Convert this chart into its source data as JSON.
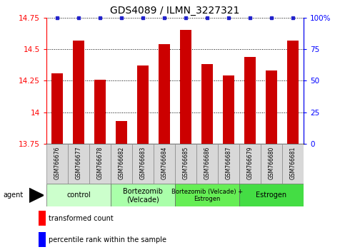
{
  "title": "GDS4089 / ILMN_3227321",
  "samples": [
    "GSM766676",
    "GSM766677",
    "GSM766678",
    "GSM766682",
    "GSM766683",
    "GSM766684",
    "GSM766685",
    "GSM766686",
    "GSM766687",
    "GSM766679",
    "GSM766680",
    "GSM766681"
  ],
  "values": [
    14.31,
    14.57,
    14.26,
    13.93,
    14.37,
    14.54,
    14.65,
    14.38,
    14.29,
    14.44,
    14.33,
    14.57
  ],
  "bar_color": "#cc0000",
  "dot_color": "#2222cc",
  "ylim": [
    13.75,
    14.75
  ],
  "y2lim": [
    0,
    100
  ],
  "yticks": [
    13.75,
    14.0,
    14.25,
    14.5,
    14.75
  ],
  "ytick_labels": [
    "13.75",
    "14",
    "14.25",
    "14.5",
    "14.75"
  ],
  "y2ticks": [
    0,
    25,
    50,
    75,
    100
  ],
  "y2tick_labels": [
    "0",
    "25",
    "50",
    "75",
    "100%"
  ],
  "group_labels": [
    "control",
    "Bortezomib\n(Velcade)",
    "Bortezomib (Velcade) +\nEstrogen",
    "Estrogen"
  ],
  "group_starts": [
    0,
    3,
    6,
    9
  ],
  "group_ends": [
    3,
    6,
    9,
    12
  ],
  "group_colors": [
    "#ccffcc",
    "#aaffaa",
    "#66ee55",
    "#44dd44"
  ],
  "legend_bar_label": "transformed count",
  "legend_dot_label": "percentile rank within the sample",
  "agent_label": "agent",
  "bg_color": "#ffffff",
  "sample_box_color": "#d8d8d8",
  "title_fontsize": 10,
  "axis_fontsize": 7.5,
  "label_fontsize": 6,
  "sample_fontsize": 5.5
}
